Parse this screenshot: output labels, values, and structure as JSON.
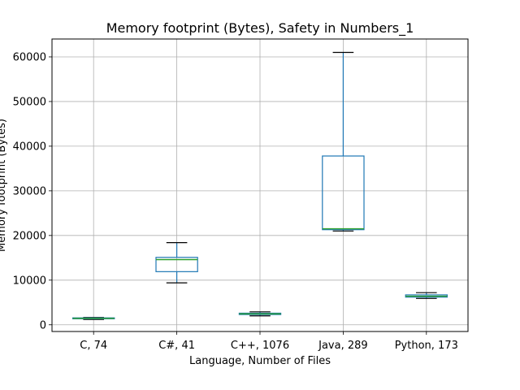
{
  "chart_data": {
    "type": "box",
    "title": "Memory footprint (Bytes), Safety in Numbers_1",
    "xlabel": "Language, Number of Files",
    "ylabel": "Memory footprint (Bytes)",
    "ylim": [
      -1500,
      64000
    ],
    "yticks": [
      0,
      10000,
      20000,
      30000,
      40000,
      50000,
      60000
    ],
    "grid": true,
    "categories": [
      "C, 74",
      "C#, 41",
      "C++, 1076",
      "Java, 289",
      "Python, 173"
    ],
    "boxes": [
      {
        "category": "C, 74",
        "whisker_low": 1200,
        "q1": 1350,
        "median": 1450,
        "q3": 1550,
        "whisker_high": 1650
      },
      {
        "category": "C#, 41",
        "whisker_low": 9400,
        "q1": 11900,
        "median": 14600,
        "q3": 15100,
        "whisker_high": 18400
      },
      {
        "category": "C++, 1076",
        "whisker_low": 2000,
        "q1": 2300,
        "median": 2450,
        "q3": 2600,
        "whisker_high": 2900
      },
      {
        "category": "Java, 289",
        "whisker_low": 21000,
        "q1": 21300,
        "median": 21500,
        "q3": 37800,
        "whisker_high": 61000
      },
      {
        "category": "Python, 173",
        "whisker_low": 5900,
        "q1": 6200,
        "median": 6400,
        "q3": 6700,
        "whisker_high": 7200
      }
    ],
    "colors": {
      "box": "#1f77b4",
      "median": "#2ca02c",
      "cap": "#000000"
    }
  }
}
